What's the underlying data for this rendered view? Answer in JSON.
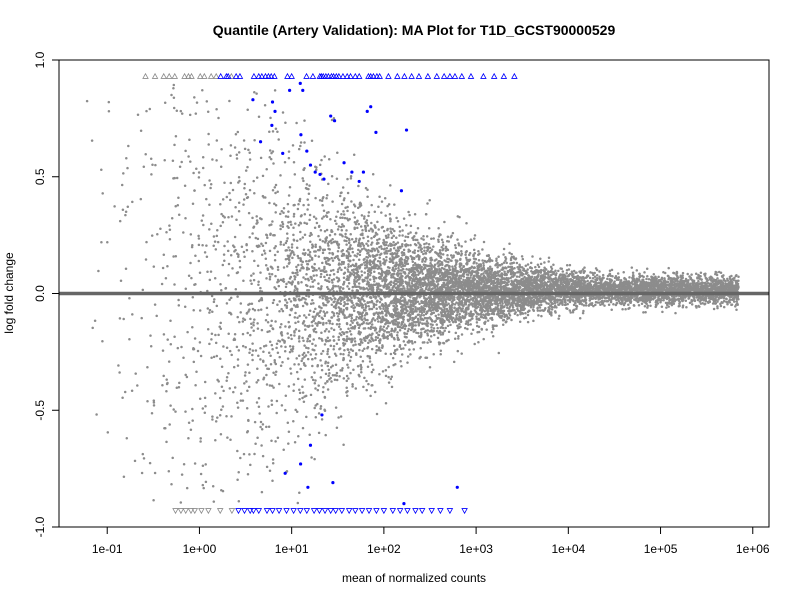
{
  "chart_data": {
    "type": "scatter",
    "title": "Quantile (Artery Validation): MA Plot for T1D_GCST90000529",
    "xlabel": "mean of normalized counts",
    "ylabel": "log fold change",
    "x_scale": "log10",
    "xlim": [
      0.03,
      1500000
    ],
    "ylim": [
      -1.0,
      1.0
    ],
    "x_ticks": [
      {
        "value": 0.1,
        "label": "1e-01"
      },
      {
        "value": 1,
        "label": "1e+00"
      },
      {
        "value": 10,
        "label": "1e+01"
      },
      {
        "value": 100,
        "label": "1e+02"
      },
      {
        "value": 1000,
        "label": "1e+03"
      },
      {
        "value": 10000,
        "label": "1e+04"
      },
      {
        "value": 100000,
        "label": "1e+05"
      },
      {
        "value": 1000000,
        "label": "1e+06"
      }
    ],
    "y_ticks": [
      {
        "value": -1.0,
        "label": "-1.0"
      },
      {
        "value": -0.5,
        "label": "-0.5"
      },
      {
        "value": 0.0,
        "label": "0.0"
      },
      {
        "value": 0.5,
        "label": "0.5"
      },
      {
        "value": 1.0,
        "label": "1.0"
      }
    ],
    "reference_line": {
      "y": 0,
      "color": "#666666"
    },
    "colors": {
      "nonsignificant": "#8c8c8c",
      "significant": "#0000ff"
    },
    "significant_points": [
      [
        3.8,
        0.83
      ],
      [
        6.2,
        0.82
      ],
      [
        6.6,
        0.78
      ],
      [
        9.5,
        0.87
      ],
      [
        12.4,
        0.9
      ],
      [
        13.2,
        0.87
      ],
      [
        6.1,
        0.72
      ],
      [
        4.6,
        0.65
      ],
      [
        12.6,
        0.68
      ],
      [
        8.0,
        0.6
      ],
      [
        14.6,
        0.61
      ],
      [
        16.0,
        0.55
      ],
      [
        18.0,
        0.52
      ],
      [
        20.3,
        0.51
      ],
      [
        22.4,
        0.49
      ],
      [
        26.5,
        0.76
      ],
      [
        29.2,
        0.74
      ],
      [
        37.0,
        0.56
      ],
      [
        45.0,
        0.52
      ],
      [
        54.0,
        0.48
      ],
      [
        60.0,
        0.52
      ],
      [
        72.0,
        0.8
      ],
      [
        66.0,
        0.78
      ],
      [
        82.0,
        0.69
      ],
      [
        176.0,
        0.7
      ],
      [
        155.0,
        0.44
      ],
      [
        21.3,
        -0.52
      ],
      [
        16.0,
        -0.65
      ],
      [
        12.5,
        -0.73
      ],
      [
        8.5,
        -0.77
      ],
      [
        15.0,
        -0.83
      ],
      [
        28.0,
        -0.81
      ],
      [
        165.0,
        -0.9
      ],
      [
        625.0,
        -0.83
      ]
    ],
    "upper_clipped_points": {
      "value": 0.93,
      "marker": "triangle-up",
      "grey_x": [
        0.26,
        0.33,
        0.41,
        0.47,
        0.54,
        0.69,
        0.76,
        0.82,
        1.02,
        1.13,
        1.34,
        1.52,
        2.22
      ],
      "blue_x": [
        1.7,
        1.96,
        2.05,
        2.5,
        2.75,
        3.9,
        4.4,
        4.75,
        5.2,
        5.6,
        6.0,
        6.5,
        9.0,
        10.0,
        14.5,
        17.0,
        20.2,
        21.0,
        22.0,
        23.5,
        25.0,
        27.0,
        28.5,
        30.5,
        32.5,
        36.0,
        40.0,
        43.5,
        49.0,
        54.0,
        68.0,
        72.0,
        77.0,
        84.0,
        90.0,
        112.0,
        140.0,
        167.0,
        200.0,
        240.0,
        300.0,
        375.0,
        450.0,
        520.0,
        590.0,
        700.0,
        880.0,
        1200.0,
        1570.0,
        2000.0,
        2600.0
      ]
    },
    "lower_clipped_points": {
      "value": -0.93,
      "marker": "triangle-down",
      "grey_x": [
        0.55,
        0.63,
        0.71,
        0.81,
        0.89,
        1.05,
        1.25,
        1.68,
        2.25
      ],
      "blue_x": [
        2.65,
        3.08,
        3.55,
        3.85,
        4.4,
        5.4,
        6.2,
        7.3,
        8.8,
        10.5,
        12.4,
        14.6,
        17.5,
        20.0,
        23.0,
        26.5,
        30.0,
        35.0,
        42.0,
        49.0,
        58.0,
        69.0,
        83.0,
        100.0,
        125.0,
        150.0,
        180.0,
        220.0,
        260.0,
        330.0,
        410.0,
        520.0,
        750.0
      ]
    },
    "grid": false,
    "legend": "none"
  }
}
